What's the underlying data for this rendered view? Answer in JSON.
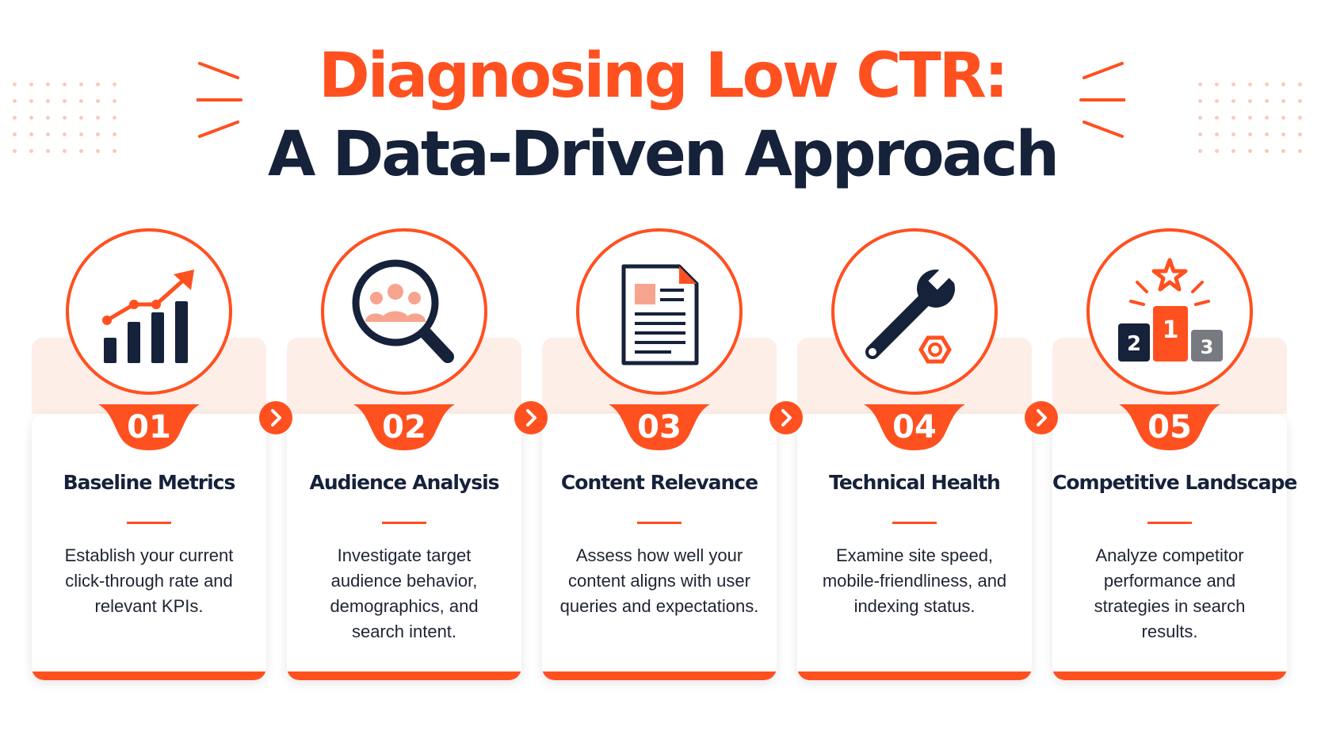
{
  "title": {
    "line1": "Diagnosing Low CTR:",
    "line2": "A Data-Driven Approach"
  },
  "colors": {
    "accent": "#ff5020",
    "dark": "#16213a",
    "soft": "#fdeee8",
    "icon_fill": "#f7a48e",
    "gray": "#777a80"
  },
  "steps": [
    {
      "number": "01",
      "title": "Baseline Metrics",
      "desc": "Establish your current click-through rate and relevant KPIs.",
      "icon": "bar-chart-trend-icon"
    },
    {
      "number": "02",
      "title": "Audience Analysis",
      "desc": "Investigate target audience behavior, demographics, and search intent.",
      "icon": "magnifier-audience-icon"
    },
    {
      "number": "03",
      "title": "Content Relevance",
      "desc": "Assess how well your content aligns with user queries and expectations.",
      "icon": "document-icon"
    },
    {
      "number": "04",
      "title": "Technical Health",
      "desc": "Examine site speed, mobile-friendliness, and indexing status.",
      "icon": "wrench-nut-icon"
    },
    {
      "number": "05",
      "title": "Competitive Landscape",
      "desc": "Analyze competitor performance and strategies in search results.",
      "icon": "podium-star-icon"
    }
  ],
  "podium": {
    "first": "1",
    "second": "2",
    "third": "3"
  },
  "connector_icon": "chevron-right-icon"
}
